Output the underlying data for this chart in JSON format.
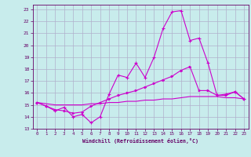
{
  "xlabel": "Windchill (Refroidissement éolien,°C)",
  "xlim": [
    -0.5,
    23.5
  ],
  "ylim": [
    13,
    23.4
  ],
  "yticks": [
    13,
    14,
    15,
    16,
    17,
    18,
    19,
    20,
    21,
    22,
    23
  ],
  "xticks": [
    0,
    1,
    2,
    3,
    4,
    5,
    6,
    7,
    8,
    9,
    10,
    11,
    12,
    13,
    14,
    15,
    16,
    17,
    18,
    19,
    20,
    21,
    22,
    23
  ],
  "bg_color": "#c8ecec",
  "grid_color": "#b0b0cc",
  "line_color": "#cc00cc",
  "line1_x": [
    0,
    1,
    2,
    3,
    4,
    5,
    6,
    7,
    8,
    9,
    10,
    11,
    12,
    13,
    14,
    15,
    16,
    17,
    18,
    19,
    20,
    21,
    22,
    23
  ],
  "line1_y": [
    15.2,
    14.9,
    14.5,
    14.8,
    14.0,
    14.2,
    13.5,
    14.0,
    15.9,
    17.5,
    17.3,
    18.5,
    17.3,
    19.0,
    21.4,
    22.8,
    22.9,
    20.4,
    20.6,
    18.5,
    15.8,
    15.9,
    16.1,
    15.5
  ],
  "line2_x": [
    0,
    1,
    2,
    3,
    4,
    5,
    6,
    7,
    8,
    9,
    10,
    11,
    12,
    13,
    14,
    15,
    16,
    17,
    18,
    19,
    20,
    21,
    22,
    23
  ],
  "line2_y": [
    15.2,
    14.9,
    14.6,
    14.5,
    14.3,
    14.4,
    14.9,
    15.2,
    15.5,
    15.8,
    16.0,
    16.2,
    16.5,
    16.8,
    17.1,
    17.4,
    17.9,
    18.2,
    16.2,
    16.2,
    15.8,
    15.8,
    16.1,
    15.5
  ],
  "line3_x": [
    0,
    1,
    2,
    3,
    4,
    5,
    6,
    7,
    8,
    9,
    10,
    11,
    12,
    13,
    14,
    15,
    16,
    17,
    18,
    19,
    20,
    21,
    22,
    23
  ],
  "line3_y": [
    15.2,
    15.1,
    15.0,
    15.0,
    15.0,
    15.0,
    15.1,
    15.1,
    15.2,
    15.2,
    15.3,
    15.3,
    15.4,
    15.4,
    15.5,
    15.5,
    15.6,
    15.7,
    15.7,
    15.7,
    15.7,
    15.6,
    15.6,
    15.5
  ]
}
